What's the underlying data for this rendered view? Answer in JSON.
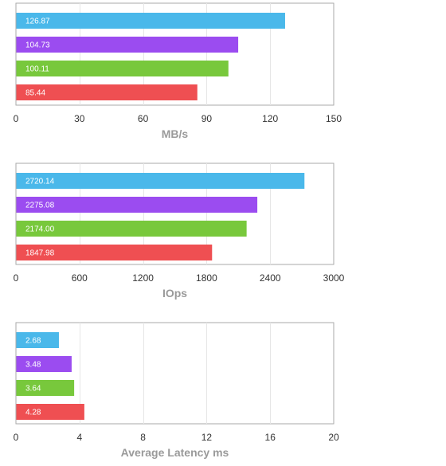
{
  "chart_data": [
    {
      "type": "bar",
      "orientation": "horizontal",
      "xlabel": "MB/s",
      "xlim": [
        0,
        150
      ],
      "xticks": [
        0,
        30,
        60,
        90,
        120,
        150
      ],
      "xtick_labels": [
        "0",
        "30",
        "60",
        "90",
        "120",
        "150"
      ],
      "grid": true,
      "values": [
        126.87,
        104.73,
        100.11,
        85.44
      ],
      "value_labels": [
        "126.87",
        "104.73",
        "100.11",
        "85.44"
      ],
      "colors": [
        "#4ab8ea",
        "#9b4cf0",
        "#78c83c",
        "#ef4f52"
      ]
    },
    {
      "type": "bar",
      "orientation": "horizontal",
      "xlabel": "IOps",
      "xlim": [
        0,
        3000
      ],
      "xticks": [
        0,
        600,
        1200,
        1800,
        2400,
        3000
      ],
      "xtick_labels": [
        "0",
        "600",
        "1200",
        "1800",
        "2400",
        "3000"
      ],
      "grid": true,
      "values": [
        2720.14,
        2275.08,
        2174.0,
        1847.98
      ],
      "value_labels": [
        "2720.14",
        "2275.08",
        "2174.00",
        "1847.98"
      ],
      "colors": [
        "#4ab8ea",
        "#9b4cf0",
        "#78c83c",
        "#ef4f52"
      ]
    },
    {
      "type": "bar",
      "orientation": "horizontal",
      "xlabel": "Average Latency ms",
      "xlim": [
        0,
        20
      ],
      "xticks": [
        0,
        4,
        8,
        12,
        16,
        20
      ],
      "xtick_labels": [
        "0",
        "4",
        "8",
        "12",
        "16",
        "20"
      ],
      "grid": true,
      "values": [
        2.68,
        3.48,
        3.64,
        4.28
      ],
      "value_labels": [
        "2.68",
        "3.48",
        "3.64",
        "4.28"
      ],
      "colors": [
        "#4ab8ea",
        "#9b4cf0",
        "#78c83c",
        "#ef4f52"
      ]
    }
  ]
}
